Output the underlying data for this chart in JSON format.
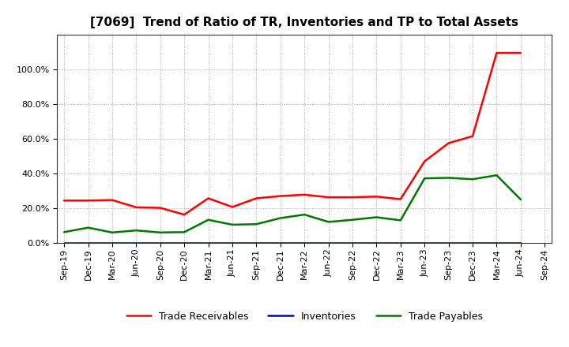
{
  "title": "[7069]  Trend of Ratio of TR, Inventories and TP to Total Assets",
  "x_labels": [
    "Sep-19",
    "Dec-19",
    "Mar-20",
    "Jun-20",
    "Sep-20",
    "Dec-20",
    "Mar-21",
    "Jun-21",
    "Sep-21",
    "Dec-21",
    "Mar-22",
    "Jun-22",
    "Sep-22",
    "Dec-22",
    "Mar-23",
    "Jun-23",
    "Sep-23",
    "Dec-23",
    "Mar-24",
    "Jun-24",
    "Sep-24"
  ],
  "trade_receivables": [
    0.244,
    0.244,
    0.247,
    0.205,
    0.202,
    0.163,
    0.257,
    0.207,
    0.257,
    0.27,
    0.278,
    0.263,
    0.263,
    0.267,
    0.252,
    0.47,
    0.575,
    0.615,
    1.095,
    1.095,
    null
  ],
  "inventories": [
    0.002,
    0.002,
    0.002,
    0.002,
    0.002,
    0.002,
    0.002,
    0.002,
    0.002,
    0.002,
    0.002,
    0.002,
    0.002,
    0.002,
    0.002,
    0.002,
    0.002,
    0.002,
    0.002,
    0.002,
    null
  ],
  "trade_payables": [
    0.062,
    0.088,
    0.06,
    0.072,
    0.06,
    0.062,
    0.133,
    0.105,
    0.108,
    0.143,
    0.163,
    0.121,
    0.133,
    0.148,
    0.13,
    0.372,
    0.375,
    0.367,
    0.39,
    0.25,
    null
  ],
  "tr_color": "#ff0000",
  "inv_color": "#0000cc",
  "tp_color": "#007700",
  "ylim": [
    0.0,
    1.2
  ],
  "yticks": [
    0.0,
    0.2,
    0.4,
    0.6,
    0.8,
    1.0
  ],
  "background_color": "#ffffff",
  "grid_color": "#999999",
  "title_fontsize": 11,
  "tick_fontsize": 8,
  "legend_fontsize": 9
}
